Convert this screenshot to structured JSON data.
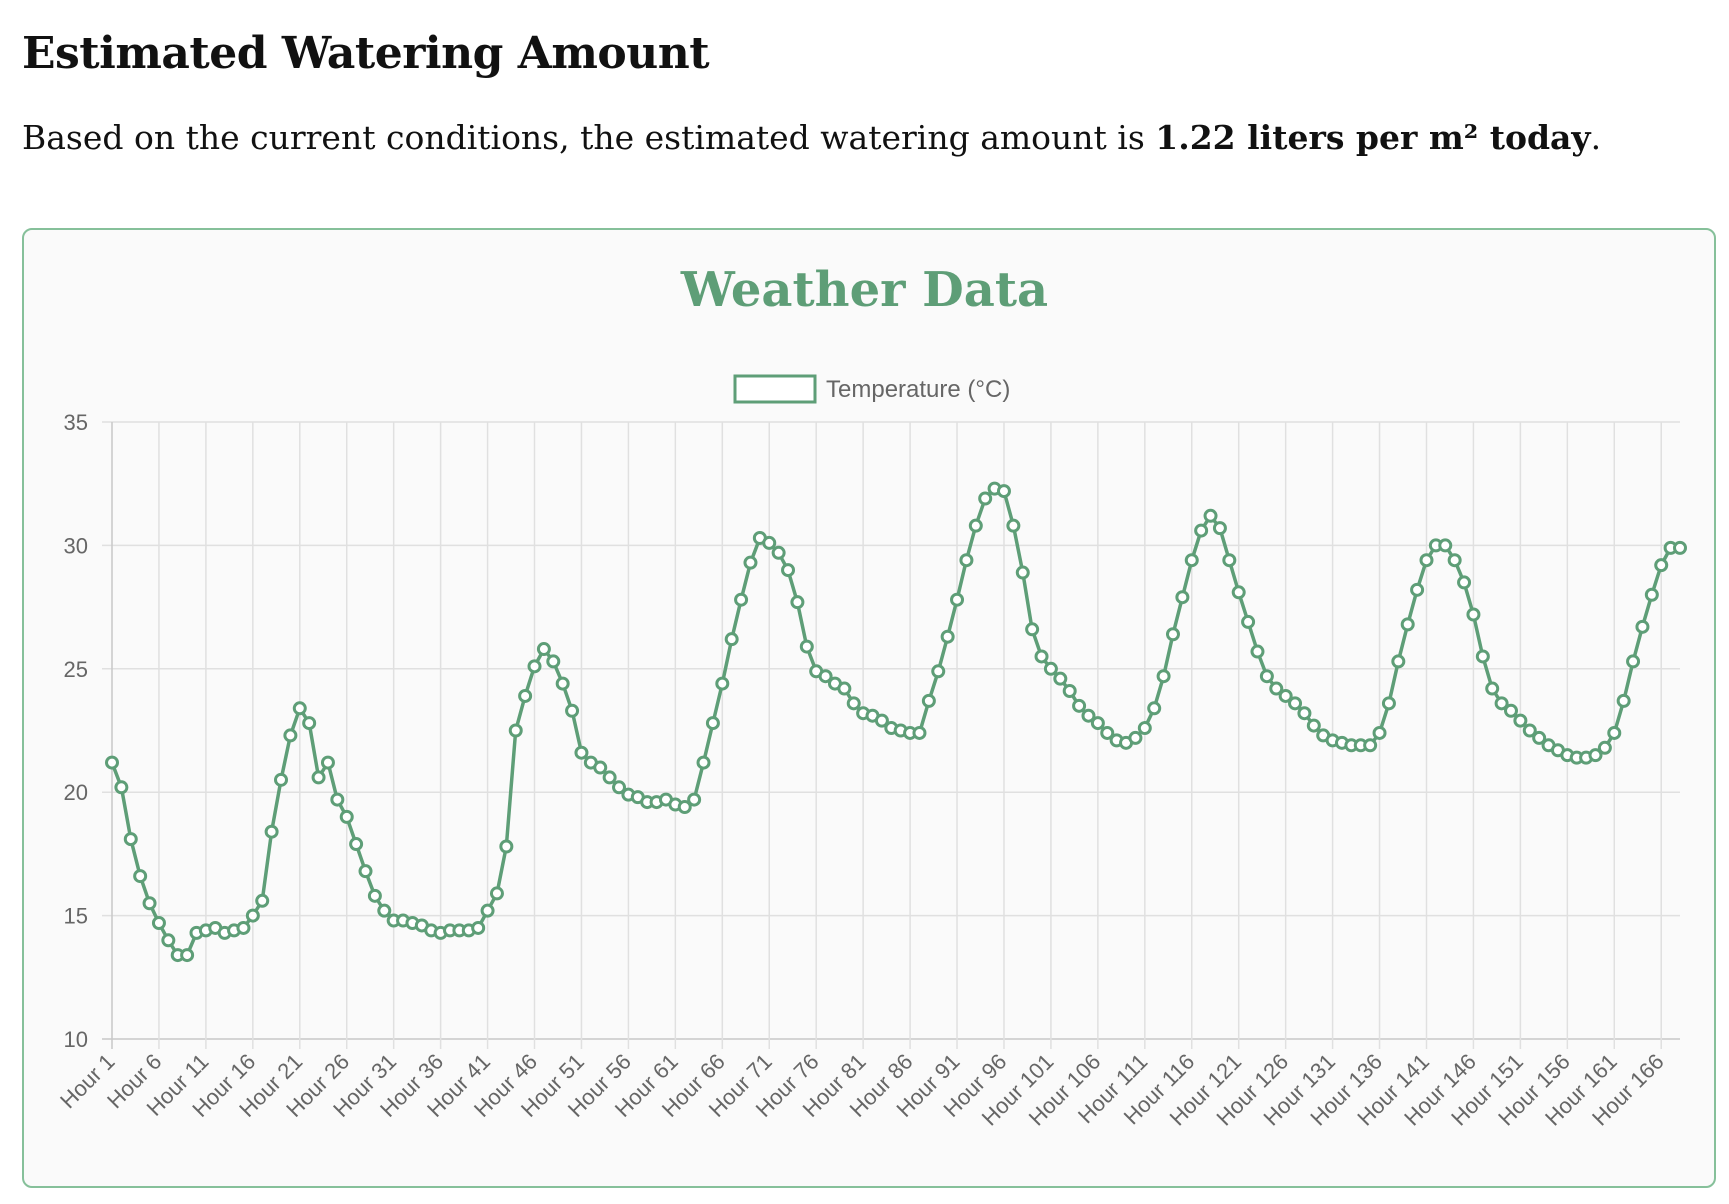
{
  "page": {
    "heading": "Estimated Watering Amount",
    "summary_prefix": "Based on the current conditions, the estimated watering amount is ",
    "summary_amount": "1.22 liters per m² today",
    "summary_suffix": "."
  },
  "colors": {
    "accent": "#5e9e77",
    "border": "#86c09a",
    "grid": "#e0e0e0"
  },
  "chart_data": {
    "type": "line",
    "title": "Weather Data",
    "legend": {
      "position": "top",
      "entries": [
        "Temperature (°C)"
      ]
    },
    "xlabel": "",
    "ylabel": "",
    "ylim": [
      10,
      35
    ],
    "yticks": [
      10,
      15,
      20,
      25,
      30,
      35
    ],
    "grid": true,
    "x_tick_every": 5,
    "x_prefix": "Hour ",
    "series": [
      {
        "name": "Temperature (°C)",
        "values": [
          21.2,
          20.2,
          18.1,
          16.6,
          15.5,
          14.7,
          14.0,
          13.4,
          13.4,
          14.3,
          14.4,
          14.5,
          14.3,
          14.4,
          14.5,
          15.0,
          15.6,
          18.4,
          20.5,
          22.3,
          23.4,
          22.8,
          20.6,
          21.2,
          19.7,
          19.0,
          17.9,
          16.8,
          15.8,
          15.2,
          14.8,
          14.8,
          14.7,
          14.6,
          14.4,
          14.3,
          14.4,
          14.4,
          14.4,
          14.5,
          15.2,
          15.9,
          17.8,
          22.5,
          23.9,
          25.1,
          25.8,
          25.3,
          24.4,
          23.3,
          21.6,
          21.2,
          21.0,
          20.6,
          20.2,
          19.9,
          19.8,
          19.6,
          19.6,
          19.7,
          19.5,
          19.4,
          19.7,
          21.2,
          22.8,
          24.4,
          26.2,
          27.8,
          29.3,
          30.3,
          30.1,
          29.7,
          29.0,
          27.7,
          25.9,
          24.9,
          24.7,
          24.4,
          24.2,
          23.6,
          23.2,
          23.1,
          22.9,
          22.6,
          22.5,
          22.4,
          22.4,
          23.7,
          24.9,
          26.3,
          27.8,
          29.4,
          30.8,
          31.9,
          32.3,
          32.2,
          30.8,
          28.9,
          26.6,
          25.5,
          25.0,
          24.6,
          24.1,
          23.5,
          23.1,
          22.8,
          22.4,
          22.1,
          22.0,
          22.2,
          22.6,
          23.4,
          24.7,
          26.4,
          27.9,
          29.4,
          30.6,
          31.2,
          30.7,
          29.4,
          28.1,
          26.9,
          25.7,
          24.7,
          24.2,
          23.9,
          23.6,
          23.2,
          22.7,
          22.3,
          22.1,
          22.0,
          21.9,
          21.9,
          21.9,
          22.4,
          23.6,
          25.3,
          26.8,
          28.2,
          29.4,
          30.0,
          30.0,
          29.4,
          28.5,
          27.2,
          25.5,
          24.2,
          23.6,
          23.3,
          22.9,
          22.5,
          22.2,
          21.9,
          21.7,
          21.5,
          21.4,
          21.4,
          21.5,
          21.8,
          22.4,
          23.7,
          25.3,
          26.7,
          28.0,
          29.2,
          29.9,
          29.9
        ]
      }
    ]
  }
}
